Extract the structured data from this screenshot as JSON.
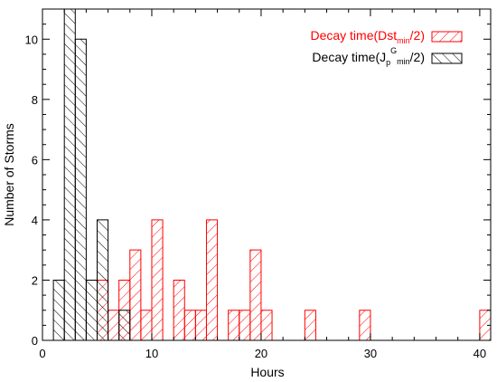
{
  "chart_data": {
    "type": "bar",
    "xlabel": "Hours",
    "ylabel": "Number of Storms",
    "xlim": [
      0,
      41
    ],
    "ylim": [
      0,
      11
    ],
    "xticks": [
      0,
      10,
      20,
      30,
      40
    ],
    "yticks": [
      0,
      2,
      4,
      6,
      8,
      10
    ],
    "bin_width": 1,
    "legend_position": "top-right",
    "series": [
      {
        "key": "dst",
        "legend": {
          "main": "Decay time(Dst",
          "sub": "min",
          "end": "/2)"
        },
        "color": "#ff0000",
        "hatch": "forward",
        "bins": [
          {
            "x": 5,
            "count": 2
          },
          {
            "x": 6,
            "count": 1
          },
          {
            "x": 7,
            "count": 2
          },
          {
            "x": 8,
            "count": 3
          },
          {
            "x": 9,
            "count": 1
          },
          {
            "x": 10,
            "count": 4
          },
          {
            "x": 11,
            "count": 0
          },
          {
            "x": 12,
            "count": 2
          },
          {
            "x": 13,
            "count": 1
          },
          {
            "x": 14,
            "count": 1
          },
          {
            "x": 15,
            "count": 4
          },
          {
            "x": 16,
            "count": 0
          },
          {
            "x": 17,
            "count": 1
          },
          {
            "x": 18,
            "count": 1
          },
          {
            "x": 19,
            "count": 3
          },
          {
            "x": 20,
            "count": 1
          },
          {
            "x": 21,
            "count": 0
          },
          {
            "x": 22,
            "count": 0
          },
          {
            "x": 23,
            "count": 0
          },
          {
            "x": 24,
            "count": 1
          },
          {
            "x": 25,
            "count": 0
          },
          {
            "x": 26,
            "count": 0
          },
          {
            "x": 27,
            "count": 0
          },
          {
            "x": 28,
            "count": 0
          },
          {
            "x": 29,
            "count": 1
          },
          {
            "x": 30,
            "count": 0
          },
          {
            "x": 31,
            "count": 0
          },
          {
            "x": 32,
            "count": 0
          },
          {
            "x": 33,
            "count": 0
          },
          {
            "x": 34,
            "count": 0
          },
          {
            "x": 35,
            "count": 0
          },
          {
            "x": 36,
            "count": 0
          },
          {
            "x": 37,
            "count": 0
          },
          {
            "x": 38,
            "count": 0
          },
          {
            "x": 39,
            "count": 0
          },
          {
            "x": 40,
            "count": 1
          }
        ]
      },
      {
        "key": "jp",
        "legend": {
          "main": "Decay time(J",
          "sub": "p",
          "sup": "G",
          "sub2": "min",
          "end": "/2)"
        },
        "color": "#000000",
        "hatch": "back",
        "bins": [
          {
            "x": 1,
            "count": 2
          },
          {
            "x": 2,
            "count": 11
          },
          {
            "x": 3,
            "count": 10
          },
          {
            "x": 4,
            "count": 2
          },
          {
            "x": 5,
            "count": 4
          },
          {
            "x": 7,
            "count": 1
          }
        ]
      }
    ]
  }
}
